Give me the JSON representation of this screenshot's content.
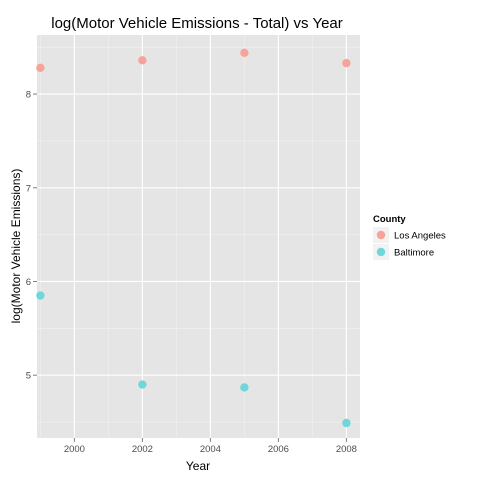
{
  "chart_data": {
    "type": "scatter",
    "title": "log(Motor Vehicle Emissions - Total) vs Year",
    "xlabel": "Year",
    "ylabel": "log(Motor Vehicle Emissions)",
    "xlim": [
      1998.9,
      2008.4
    ],
    "ylim": [
      4.33,
      8.63
    ],
    "x_ticks": [
      2000,
      2002,
      2004,
      2006,
      2008
    ],
    "y_ticks": [
      5,
      6,
      7,
      8
    ],
    "grid": true,
    "legend": {
      "title": "County",
      "position": "right",
      "entries": [
        "Los Angeles",
        "Baltimore"
      ]
    },
    "series": [
      {
        "name": "Los Angeles",
        "color": "#F8A39A",
        "points": [
          {
            "x": 1999,
            "y": 8.28
          },
          {
            "x": 2002,
            "y": 8.36
          },
          {
            "x": 2005,
            "y": 8.44
          },
          {
            "x": 2008,
            "y": 8.33
          }
        ]
      },
      {
        "name": "Baltimore",
        "color": "#6FD6DA",
        "points": [
          {
            "x": 1999,
            "y": 5.85
          },
          {
            "x": 2002,
            "y": 4.9
          },
          {
            "x": 2005,
            "y": 4.87
          },
          {
            "x": 2008,
            "y": 4.49
          }
        ]
      }
    ]
  }
}
